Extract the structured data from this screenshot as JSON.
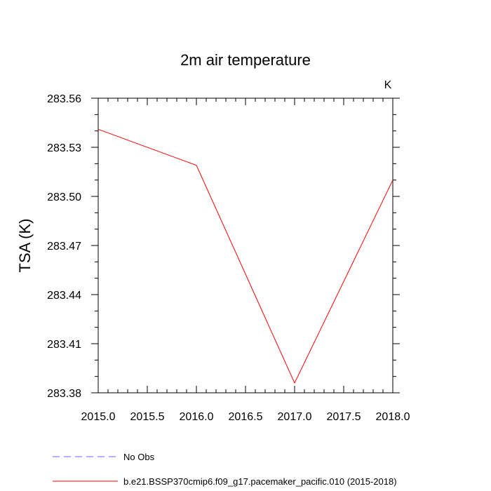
{
  "chart_data": {
    "type": "line",
    "title": "2m air temperature",
    "ylabel": "TSA  (K)",
    "units_label": "K",
    "xlim": [
      2015.0,
      2018.0
    ],
    "ylim": [
      283.38,
      283.56
    ],
    "x_ticks": [
      2015.0,
      2015.5,
      2016.0,
      2016.5,
      2017.0,
      2017.5,
      2018.0
    ],
    "x_tick_labels": [
      "2015.0",
      "2015.5",
      "2016.0",
      "2016.5",
      "2017.0",
      "2017.5",
      "2018.0"
    ],
    "y_ticks": [
      283.38,
      283.41,
      283.44,
      283.47,
      283.5,
      283.53,
      283.56
    ],
    "y_tick_labels": [
      "283.38",
      "283.41",
      "283.44",
      "283.47",
      "283.50",
      "283.53",
      "283.56"
    ],
    "grid": false,
    "legend_position": "bottom",
    "series": [
      {
        "name": "b.e21.BSSP370cmip6.f09_g17.pacemaker_pacific.010 (2015-2018)",
        "color": "#ff0000",
        "line_style": "solid",
        "x": [
          2015,
          2016,
          2017,
          2018
        ],
        "y": [
          283.541,
          283.519,
          283.386,
          283.51
        ]
      }
    ],
    "legend": [
      {
        "label": "No Obs",
        "color": "#6b6bff",
        "line_style": "dashed"
      },
      {
        "label": "b.e21.BSSP370cmip6.f09_g17.pacemaker_pacific.010 (2015-2018)",
        "color": "#ff0000",
        "line_style": "solid"
      }
    ]
  }
}
